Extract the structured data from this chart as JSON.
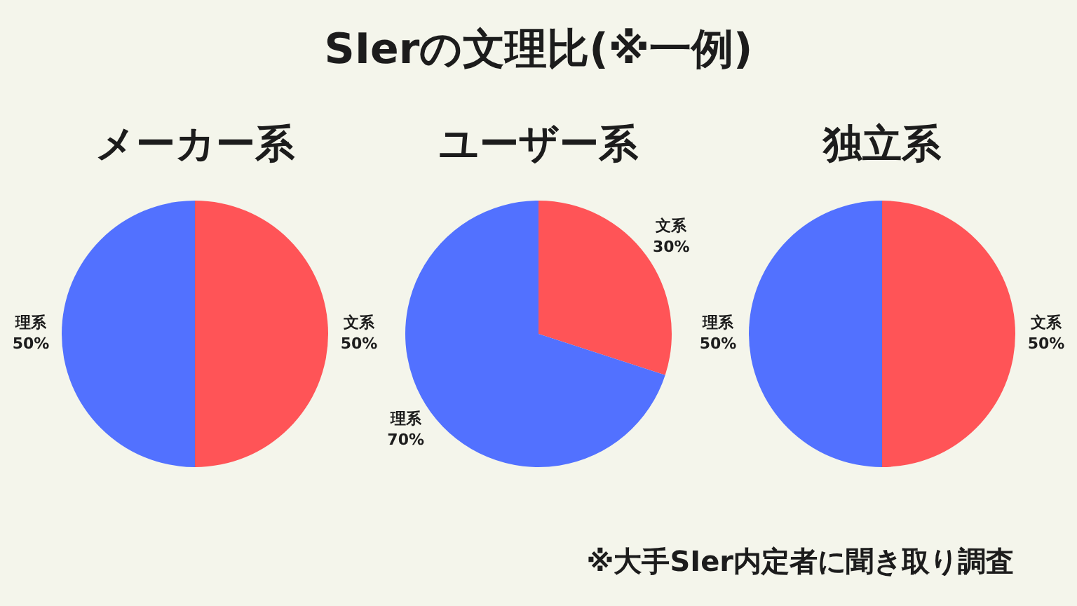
{
  "chart_data": [
    {
      "type": "pie",
      "title": "メーカー系",
      "annotations": [
        "SIerの文理比(※一例)"
      ],
      "categories": [
        "文系",
        "理系"
      ],
      "values": [
        50,
        50
      ],
      "colors": [
        "#ff5457",
        "#5271ff"
      ],
      "value_labels": [
        "50%",
        "50%"
      ]
    },
    {
      "type": "pie",
      "title": "ユーザー系",
      "categories": [
        "文系",
        "理系"
      ],
      "values": [
        30,
        70
      ],
      "colors": [
        "#ff5457",
        "#5271ff"
      ],
      "value_labels": [
        "30%",
        "70%"
      ]
    },
    {
      "type": "pie",
      "title": "独立系",
      "annotations": [
        "※大手SIer内定者に聞き取り調査"
      ],
      "categories": [
        "文系",
        "理系"
      ],
      "values": [
        50,
        50
      ],
      "colors": [
        "#ff5457",
        "#5271ff"
      ],
      "value_labels": [
        "50%",
        "50%"
      ]
    }
  ]
}
